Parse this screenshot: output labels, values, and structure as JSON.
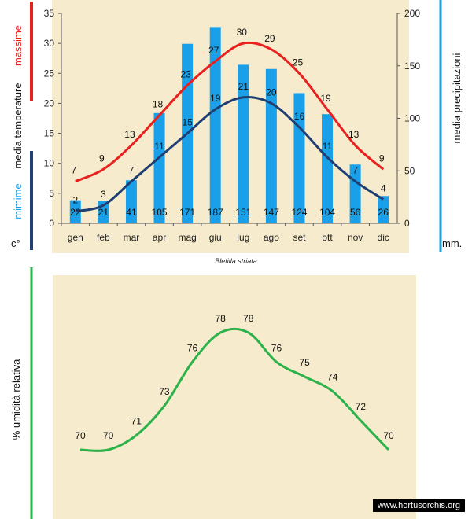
{
  "caption": "Bletilla striata",
  "credit": "www.hortusorchis.org",
  "colors": {
    "max": "#e8211f",
    "min": "#1f3f73",
    "bar": "#1aa0e8",
    "humidity": "#2bb24a",
    "paper": "#f6ebcc"
  },
  "chart_data": [
    {
      "type": "bar+line",
      "categories": [
        "gen",
        "feb",
        "mar",
        "apr",
        "mag",
        "giu",
        "lug",
        "ago",
        "set",
        "ott",
        "nov",
        "dic"
      ],
      "left_axis": {
        "ylim": [
          0,
          35
        ],
        "ticks": [
          0,
          5,
          10,
          15,
          20,
          25,
          30,
          35
        ],
        "label_parts": {
          "max": "massime",
          "middle": "media  temperature",
          "min": "mimime",
          "unit": "c°"
        }
      },
      "right_axis": {
        "ylim": [
          0,
          200
        ],
        "ticks": [
          0,
          50,
          100,
          150,
          200
        ],
        "label": "media  precipitazioni",
        "unit": "mm."
      },
      "series": [
        {
          "name": "massime",
          "kind": "line",
          "axis": "left",
          "values": [
            7,
            9,
            13,
            18,
            23,
            27,
            30,
            29,
            25,
            19,
            13,
            9
          ]
        },
        {
          "name": "mimime",
          "kind": "line",
          "axis": "left",
          "values": [
            2,
            3,
            7,
            11,
            15,
            19,
            21,
            20,
            16,
            11,
            7,
            4
          ]
        },
        {
          "name": "precipitazioni",
          "kind": "bar",
          "axis": "right",
          "values": [
            22,
            21,
            41,
            105,
            171,
            187,
            151,
            147,
            124,
            104,
            56,
            26
          ]
        }
      ]
    },
    {
      "type": "line",
      "categories": [
        "gen",
        "feb",
        "mar",
        "apr",
        "mag",
        "giu",
        "lug",
        "ago",
        "set",
        "ott",
        "nov",
        "dic"
      ],
      "ylabel": "% umidità relativa",
      "series": [
        {
          "name": "umidità relativa",
          "values": [
            70,
            70,
            71,
            73,
            76,
            78,
            78,
            76,
            75,
            74,
            72,
            70
          ]
        }
      ]
    }
  ]
}
